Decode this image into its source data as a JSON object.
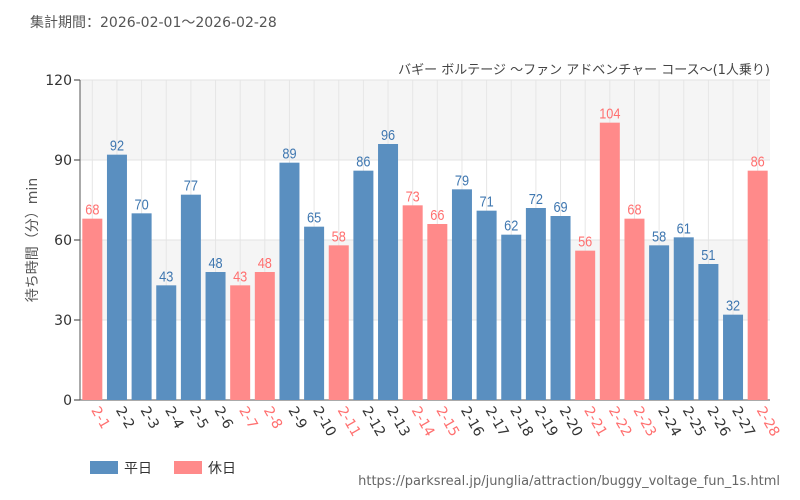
{
  "header": {
    "period": "集計期間：2026-02-01～2026-02-28"
  },
  "footer": {
    "url": "https://parksreal.jp/junglia/attraction/buggy_voltage_fun_1s.html"
  },
  "chart_data": {
    "type": "bar",
    "title": "バギー ボルテージ ～ファン アドベンチャー コース～(1人乗り)",
    "ylabel": "待ち時間（分）min",
    "xlabel": "",
    "ylim": [
      0,
      120
    ],
    "yticks": [
      0,
      30,
      60,
      90,
      120
    ],
    "grid": true,
    "legend_position": "bottom-left",
    "legend": [
      {
        "name": "平日",
        "color": "#5a8fc0"
      },
      {
        "name": "休日",
        "color": "#ff8a8a"
      }
    ],
    "categories": [
      "2-1",
      "2-2",
      "2-3",
      "2-4",
      "2-5",
      "2-6",
      "2-7",
      "2-8",
      "2-9",
      "2-10",
      "2-11",
      "2-12",
      "2-13",
      "2-14",
      "2-15",
      "2-16",
      "2-17",
      "2-18",
      "2-19",
      "2-20",
      "2-21",
      "2-22",
      "2-23",
      "2-24",
      "2-25",
      "2-26",
      "2-27",
      "2-28"
    ],
    "values": [
      68,
      92,
      70,
      43,
      77,
      48,
      43,
      48,
      89,
      65,
      58,
      86,
      96,
      73,
      66,
      79,
      71,
      62,
      72,
      69,
      56,
      104,
      68,
      58,
      61,
      51,
      32,
      86
    ],
    "day_type": [
      "休日",
      "平日",
      "平日",
      "平日",
      "平日",
      "平日",
      "休日",
      "休日",
      "平日",
      "平日",
      "休日",
      "平日",
      "平日",
      "休日",
      "休日",
      "平日",
      "平日",
      "平日",
      "平日",
      "平日",
      "休日",
      "休日",
      "休日",
      "平日",
      "平日",
      "平日",
      "平日",
      "休日"
    ]
  }
}
